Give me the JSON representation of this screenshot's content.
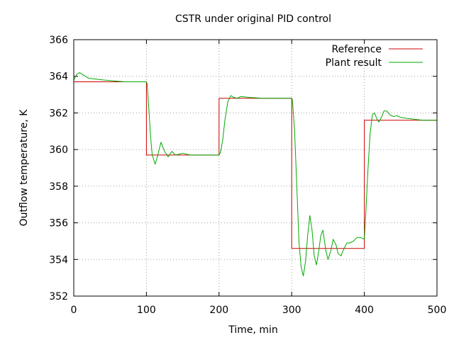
{
  "chart_data": {
    "type": "line",
    "title": "CSTR under original PID control",
    "xlabel": "Time, min",
    "ylabel": "Outflow temperature, K",
    "xlim": [
      0,
      500
    ],
    "ylim": [
      352,
      366
    ],
    "x_ticks": [
      "0",
      "100",
      "200",
      "300",
      "400",
      "500"
    ],
    "y_ticks": [
      "352",
      "354",
      "356",
      "358",
      "360",
      "362",
      "364",
      "366"
    ],
    "grid": true,
    "legend_position": "top-right",
    "series": [
      {
        "name": "Reference",
        "color": "#cc0000",
        "x": [
          0,
          100,
          100,
          200,
          200,
          300,
          300,
          400,
          400,
          500
        ],
        "y": [
          363.7,
          363.7,
          359.7,
          359.7,
          362.8,
          362.8,
          354.6,
          354.6,
          361.6,
          361.6
        ]
      },
      {
        "name": "Plant result",
        "color": "#00aa00",
        "x": [
          0,
          4,
          8,
          12,
          20,
          40,
          70,
          100,
          101,
          103,
          106,
          108,
          112,
          115,
          120,
          125,
          130,
          135,
          140,
          145,
          150,
          160,
          170,
          200,
          202,
          205,
          208,
          212,
          216,
          220,
          225,
          230,
          240,
          260,
          280,
          300,
          301,
          304,
          307,
          310,
          313,
          316,
          319,
          322,
          325,
          328,
          331,
          334,
          337,
          340,
          343,
          347,
          350,
          354,
          357,
          361,
          364,
          368,
          372,
          376,
          380,
          385,
          390,
          395,
          400,
          402,
          405,
          408,
          411,
          414,
          417,
          420,
          424,
          427,
          431,
          435,
          440,
          445,
          450,
          460,
          480,
          500
        ],
        "y": [
          363.8,
          364.1,
          364.2,
          364.1,
          363.9,
          363.8,
          363.7,
          363.7,
          363.6,
          362.4,
          360.6,
          359.7,
          359.2,
          359.6,
          360.4,
          359.9,
          359.6,
          359.9,
          359.7,
          359.75,
          359.8,
          359.7,
          359.7,
          359.7,
          359.85,
          360.5,
          361.6,
          362.6,
          362.95,
          362.85,
          362.8,
          362.9,
          362.85,
          362.8,
          362.8,
          362.8,
          362.7,
          361.0,
          358.0,
          355.0,
          353.6,
          353.1,
          353.9,
          355.3,
          356.4,
          355.6,
          354.2,
          353.7,
          354.4,
          355.3,
          355.6,
          354.5,
          354.0,
          354.5,
          355.1,
          354.8,
          354.3,
          354.2,
          354.6,
          354.9,
          354.9,
          355.0,
          355.2,
          355.2,
          355.1,
          356.5,
          358.9,
          360.9,
          361.9,
          362.0,
          361.7,
          361.5,
          361.8,
          362.1,
          362.1,
          361.9,
          361.8,
          361.85,
          361.75,
          361.7,
          361.6,
          361.6
        ]
      }
    ]
  }
}
